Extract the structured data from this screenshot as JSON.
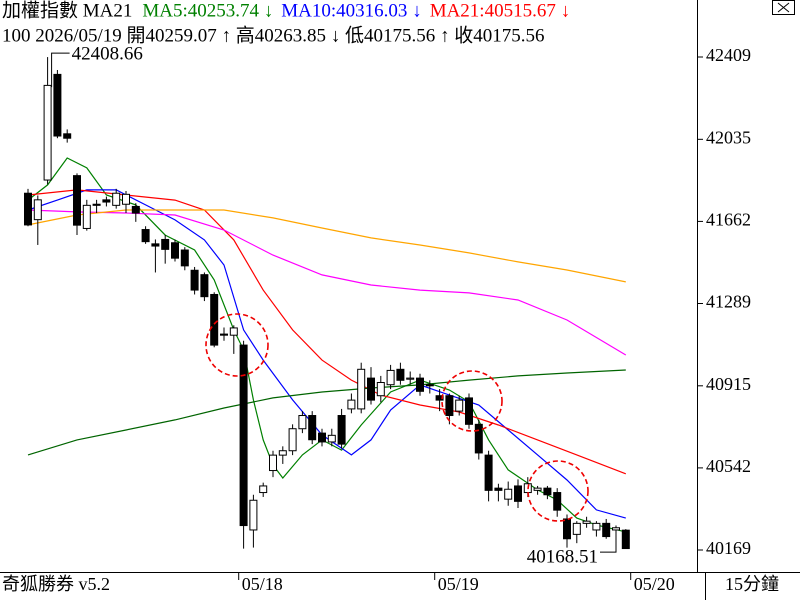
{
  "chart_data": {
    "type": "candlestick",
    "title": "加權指數 MA21",
    "subtitle": "100 2026/05/19 開40259.07 ↑ 高40263.85 ↓ 低40175.56 ↑ 收40175.56",
    "footer_left": "奇狐勝券 v5.2",
    "footer_right": "15分鐘",
    "categories": [
      null,
      null,
      null,
      null,
      null,
      null,
      null,
      null,
      null,
      null,
      null,
      null,
      null,
      null,
      null,
      null,
      null,
      null,
      null,
      null,
      null,
      null,
      "05/18",
      null,
      null,
      null,
      null,
      null,
      null,
      null,
      null,
      null,
      null,
      null,
      null,
      null,
      null,
      null,
      null,
      null,
      null,
      null,
      "05/19",
      null,
      null,
      null,
      null,
      null,
      null,
      null,
      null,
      null,
      null,
      null,
      null,
      null,
      null,
      null,
      null,
      null,
      null,
      null,
      "05/20"
    ],
    "open": [
      41790,
      41670,
      41850,
      42330,
      42060,
      41870,
      41630,
      41740,
      41760,
      41735,
      41740,
      41730,
      41625,
      41560,
      41580,
      41565,
      41532,
      41440,
      41420,
      41330,
      41150,
      41145,
      41100,
      40260,
      40430,
      40530,
      40600,
      40620,
      40720,
      40780,
      40700,
      40660,
      40780,
      40810,
      40810,
      40950,
      40870,
      40920,
      40990,
      40945,
      40950,
      40920,
      40870,
      40870,
      40800,
      40860,
      40740,
      40600,
      40450,
      40400,
      40460,
      40430,
      40440,
      40450,
      40430,
      40310,
      40240,
      40290,
      40260,
      40290,
      40260,
      40259.07,
      null
    ],
    "high": [
      41810,
      41780,
      42408.66,
      42350,
      42080,
      41880,
      41760,
      41760,
      41775,
      41810,
      41800,
      41745,
      41640,
      41580,
      41600,
      41580,
      41545,
      41455,
      41430,
      41340,
      41180,
      41190,
      41120,
      40420,
      40475,
      40620,
      40640,
      40740,
      40800,
      40800,
      40720,
      40720,
      40810,
      40880,
      41020,
      41000,
      40960,
      41010,
      41020,
      40980,
      40970,
      40940,
      40900,
      40880,
      40870,
      40880,
      40760,
      40620,
      40470,
      40480,
      40490,
      40500,
      40460,
      40460,
      40450,
      40330,
      40300,
      40320,
      40300,
      40310,
      40280,
      40263.85,
      null
    ],
    "low": [
      41640,
      41555,
      41830,
      42040,
      42020,
      41600,
      41620,
      41700,
      41730,
      41720,
      41700,
      41660,
      41560,
      41430,
      41470,
      41480,
      41440,
      41330,
      41300,
      41090,
      41120,
      41060,
      40175,
      40180,
      40410,
      40500,
      40560,
      40600,
      40700,
      40650,
      40640,
      40640,
      40630,
      40790,
      40790,
      40830,
      40840,
      40900,
      40920,
      40920,
      40870,
      40880,
      40800,
      40740,
      40780,
      40720,
      40580,
      40390,
      40390,
      40370,
      40360,
      40410,
      40420,
      40400,
      40320,
      40180,
      40200,
      40270,
      40230,
      40220,
      40168.51,
      40175.56,
      null
    ],
    "close": [
      41646,
      41760,
      42280,
      42050,
      42040,
      41645,
      41735,
      41735,
      41750,
      41790,
      41785,
      41700,
      41570,
      41550,
      41535,
      41495,
      41460,
      41350,
      41320,
      41100,
      41145,
      41178,
      40280,
      40395,
      40460,
      40600,
      40620,
      40720,
      40780,
      40670,
      40660,
      40690,
      40650,
      40850,
      40990,
      40850,
      40930,
      40985,
      40940,
      40950,
      40890,
      40915,
      40850,
      40780,
      40850,
      40740,
      40610,
      40440,
      40440,
      40445,
      40390,
      40470,
      40450,
      40420,
      40350,
      40220,
      40290,
      40300,
      40290,
      40230,
      40270,
      40175.56,
      null
    ],
    "up_color": "#ffffff",
    "down_color": "#000000",
    "edge_color": "#000000",
    "high_annotation": 42408.66,
    "low_annotation": 40168.51,
    "lines": [
      {
        "name": "MA5:40253.74 ↓",
        "color": "#008000",
        "x": [
          0,
          2,
          4,
          6,
          8,
          11,
          14,
          17,
          19,
          21,
          22,
          23,
          24,
          25,
          26,
          28,
          30,
          32,
          34,
          37,
          40,
          43,
          45,
          47,
          49,
          52,
          54,
          56,
          58,
          61
        ],
        "values": [
          41759,
          41828,
          41950,
          41905,
          41782,
          41737,
          41600,
          41532,
          41396,
          41169,
          41078,
          40851,
          40669,
          40555,
          40496,
          40601,
          40669,
          40623,
          40737,
          40887,
          40941,
          40896,
          40842,
          40669,
          40533,
          40442,
          40396,
          40314,
          40283,
          40251
        ]
      },
      {
        "name": "MA10:40316.03 ↓",
        "color": "#0000ff",
        "x": [
          0,
          3,
          6,
          9,
          12,
          15,
          18,
          20,
          22,
          24,
          27,
          30,
          33,
          35,
          37,
          40,
          43,
          46,
          49,
          52,
          55,
          58,
          61
        ],
        "values": [
          41714,
          41759,
          41805,
          41805,
          41737,
          41669,
          41578,
          41464,
          41169,
          41032,
          40851,
          40692,
          40601,
          40669,
          40805,
          40919,
          40873,
          40828,
          40714,
          40601,
          40487,
          40351,
          40314
        ]
      },
      {
        "name": "MA21:40515.67 ↓",
        "color": "#ff0000",
        "x": [
          0,
          5,
          10,
          15,
          18,
          21,
          24,
          27,
          30,
          33,
          36,
          40,
          44,
          48,
          52,
          56,
          61
        ],
        "values": [
          41782,
          41805,
          41782,
          41759,
          41714,
          41578,
          41350,
          41169,
          41032,
          40941,
          40873,
          40828,
          40796,
          40737,
          40669,
          40601,
          40515
        ]
      },
      {
        "color": "#ff00ff",
        "x": [
          0,
          5,
          10,
          15,
          20,
          25,
          30,
          35,
          40,
          45,
          50,
          55,
          61
        ],
        "values": [
          41714,
          41705,
          41700,
          41691,
          41623,
          41509,
          41419,
          41373,
          41350,
          41337,
          41305,
          41214,
          41055
        ]
      },
      {
        "color": "#ffa500",
        "x": [
          0,
          5,
          10,
          15,
          20,
          25,
          30,
          35,
          40,
          45,
          50,
          55,
          61
        ],
        "values": [
          41646,
          41691,
          41714,
          41714,
          41714,
          41678,
          41632,
          41587,
          41555,
          41519,
          41478,
          41441,
          41387
        ]
      },
      {
        "color": "#006400",
        "x": [
          0,
          5,
          10,
          15,
          20,
          25,
          30,
          35,
          40,
          45,
          50,
          55,
          61
        ],
        "values": [
          40601,
          40669,
          40714,
          40760,
          40814,
          40860,
          40887,
          40905,
          40919,
          40941,
          40960,
          40973,
          40987
        ]
      }
    ],
    "ylim": [
      40069,
      42668
    ],
    "yticks": [
      40169,
      40542,
      40915,
      41289,
      41662,
      42035,
      42409
    ]
  }
}
